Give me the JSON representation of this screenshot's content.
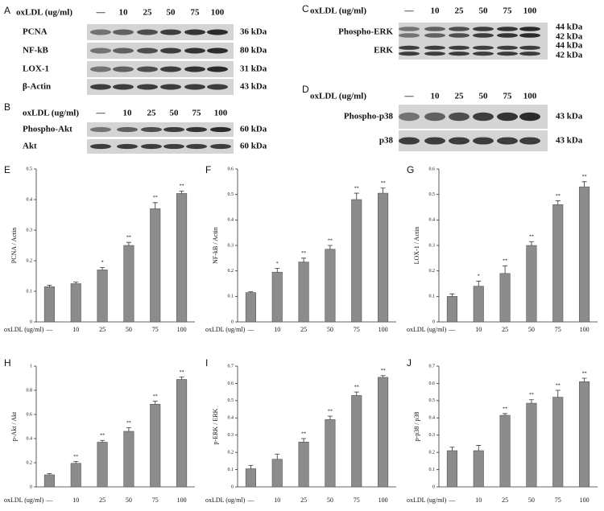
{
  "blots": [
    {
      "panel_label": "A",
      "header": "oxLDL (ug/ml)",
      "lanes": [
        "—",
        "10",
        "25",
        "50",
        "75",
        "100"
      ],
      "rows": [
        {
          "label": "PCNA",
          "kda": [
            "36 kDa"
          ]
        },
        {
          "label": "NF-kB",
          "kda": [
            "80 kDa"
          ]
        },
        {
          "label": "LOX-1",
          "kda": [
            "31 kDa"
          ]
        },
        {
          "label": "β-Actin",
          "kda": [
            "43 kDa"
          ]
        }
      ]
    },
    {
      "panel_label": "B",
      "header": "oxLDL (ug/ml)",
      "lanes": [
        "—",
        "10",
        "25",
        "50",
        "75",
        "100"
      ],
      "rows": [
        {
          "label": "Phospho-Akt",
          "kda": [
            "60 kDa"
          ]
        },
        {
          "label": "Akt",
          "kda": [
            "60 kDa"
          ]
        }
      ]
    },
    {
      "panel_label": "C",
      "header": "oxLDL (ug/ml)",
      "lanes": [
        "—",
        "10",
        "25",
        "50",
        "75",
        "100"
      ],
      "rows": [
        {
          "label": "Phospho-ERK",
          "kda": [
            "44 kDa",
            "42 kDa"
          ]
        },
        {
          "label": "ERK",
          "kda": [
            "44 kDa",
            "42 kDa"
          ]
        }
      ]
    },
    {
      "panel_label": "D",
      "header": "oxLDL (ug/ml)",
      "lanes": [
        "—",
        "10",
        "25",
        "50",
        "75",
        "100"
      ],
      "rows": [
        {
          "label": "Phospho-p38",
          "kda": [
            "43 kDa"
          ]
        },
        {
          "label": "p38",
          "kda": [
            "43 kDa"
          ]
        }
      ]
    }
  ],
  "chart_data": [
    {
      "type": "bar",
      "panel_label": "E",
      "y_label": "PCNA / Actin",
      "x_label": "oxLDL (ug/ml)",
      "color": "#8c8c8c",
      "categories": [
        "—",
        "10",
        "25",
        "50",
        "75",
        "100"
      ],
      "values": [
        0.115,
        0.125,
        0.17,
        0.25,
        0.37,
        0.42
      ],
      "errors": [
        0.005,
        0.005,
        0.008,
        0.01,
        0.02,
        0.008
      ],
      "significance": [
        null,
        null,
        "*",
        "**",
        "**",
        "**"
      ],
      "ylim": [
        0,
        0.5
      ],
      "yticks": [
        0,
        0.1,
        0.2,
        0.3,
        0.4,
        0.5
      ]
    },
    {
      "type": "bar",
      "panel_label": "F",
      "y_label": "NF-kB / Actin",
      "x_label": "oxLDL (ug/ml)",
      "color": "#8c8c8c",
      "categories": [
        "—",
        "10",
        "25",
        "50",
        "75",
        "100"
      ],
      "values": [
        0.115,
        0.195,
        0.235,
        0.285,
        0.48,
        0.505
      ],
      "errors": [
        0.003,
        0.015,
        0.015,
        0.015,
        0.025,
        0.02
      ],
      "significance": [
        null,
        "*",
        "**",
        "**",
        "**",
        "**"
      ],
      "ylim": [
        0,
        0.6
      ],
      "yticks": [
        0,
        0.1,
        0.2,
        0.3,
        0.4,
        0.5,
        0.6
      ]
    },
    {
      "type": "bar",
      "panel_label": "G",
      "y_label": "LOX-1 / Actin",
      "x_label": "oxLDL (ug/ml)",
      "color": "#8c8c8c",
      "categories": [
        "—",
        "10",
        "25",
        "50",
        "75",
        "100"
      ],
      "values": [
        0.1,
        0.14,
        0.19,
        0.3,
        0.46,
        0.53
      ],
      "errors": [
        0.01,
        0.02,
        0.03,
        0.015,
        0.015,
        0.02
      ],
      "significance": [
        null,
        "*",
        "**",
        "**",
        "**",
        "**"
      ],
      "ylim": [
        0,
        0.6
      ],
      "yticks": [
        0,
        0.1,
        0.2,
        0.3,
        0.4,
        0.5,
        0.6
      ]
    },
    {
      "type": "bar",
      "panel_label": "H",
      "y_label": "p-Akt / Akt",
      "x_label": "oxLDL (ug/ml)",
      "color": "#8c8c8c",
      "categories": [
        "—",
        "10",
        "25",
        "50",
        "75",
        "100"
      ],
      "values": [
        0.1,
        0.195,
        0.37,
        0.46,
        0.685,
        0.89
      ],
      "errors": [
        0.01,
        0.015,
        0.015,
        0.03,
        0.025,
        0.02
      ],
      "significance": [
        null,
        "**",
        "**",
        "**",
        "**",
        "**"
      ],
      "ylim": [
        0,
        1
      ],
      "yticks": [
        0,
        0.2,
        0.4,
        0.6,
        0.8,
        1
      ]
    },
    {
      "type": "bar",
      "panel_label": "I",
      "y_label": "p-ERK / ERK",
      "x_label": "oxLDL (ug/ml)",
      "color": "#8c8c8c",
      "categories": [
        "—",
        "10",
        "25",
        "50",
        "75",
        "100"
      ],
      "values": [
        0.105,
        0.16,
        0.26,
        0.39,
        0.53,
        0.635
      ],
      "errors": [
        0.02,
        0.03,
        0.02,
        0.02,
        0.02,
        0.01
      ],
      "significance": [
        null,
        null,
        "**",
        "**",
        "**",
        "**"
      ],
      "ylim": [
        0,
        0.7
      ],
      "yticks": [
        0,
        0.1,
        0.2,
        0.3,
        0.4,
        0.5,
        0.6,
        0.7
      ]
    },
    {
      "type": "bar",
      "panel_label": "J",
      "y_label": "p-p38 / p38",
      "x_label": "oxLDL (ug/ml)",
      "color": "#8c8c8c",
      "categories": [
        "—",
        "10",
        "25",
        "50",
        "75",
        "100"
      ],
      "values": [
        0.21,
        0.21,
        0.415,
        0.485,
        0.52,
        0.61
      ],
      "errors": [
        0.02,
        0.03,
        0.01,
        0.02,
        0.04,
        0.02
      ],
      "significance": [
        null,
        null,
        "**",
        "**",
        "**",
        "**"
      ],
      "ylim": [
        0,
        0.7
      ],
      "yticks": [
        0,
        0.1,
        0.2,
        0.3,
        0.4,
        0.5,
        0.6,
        0.7
      ]
    }
  ]
}
